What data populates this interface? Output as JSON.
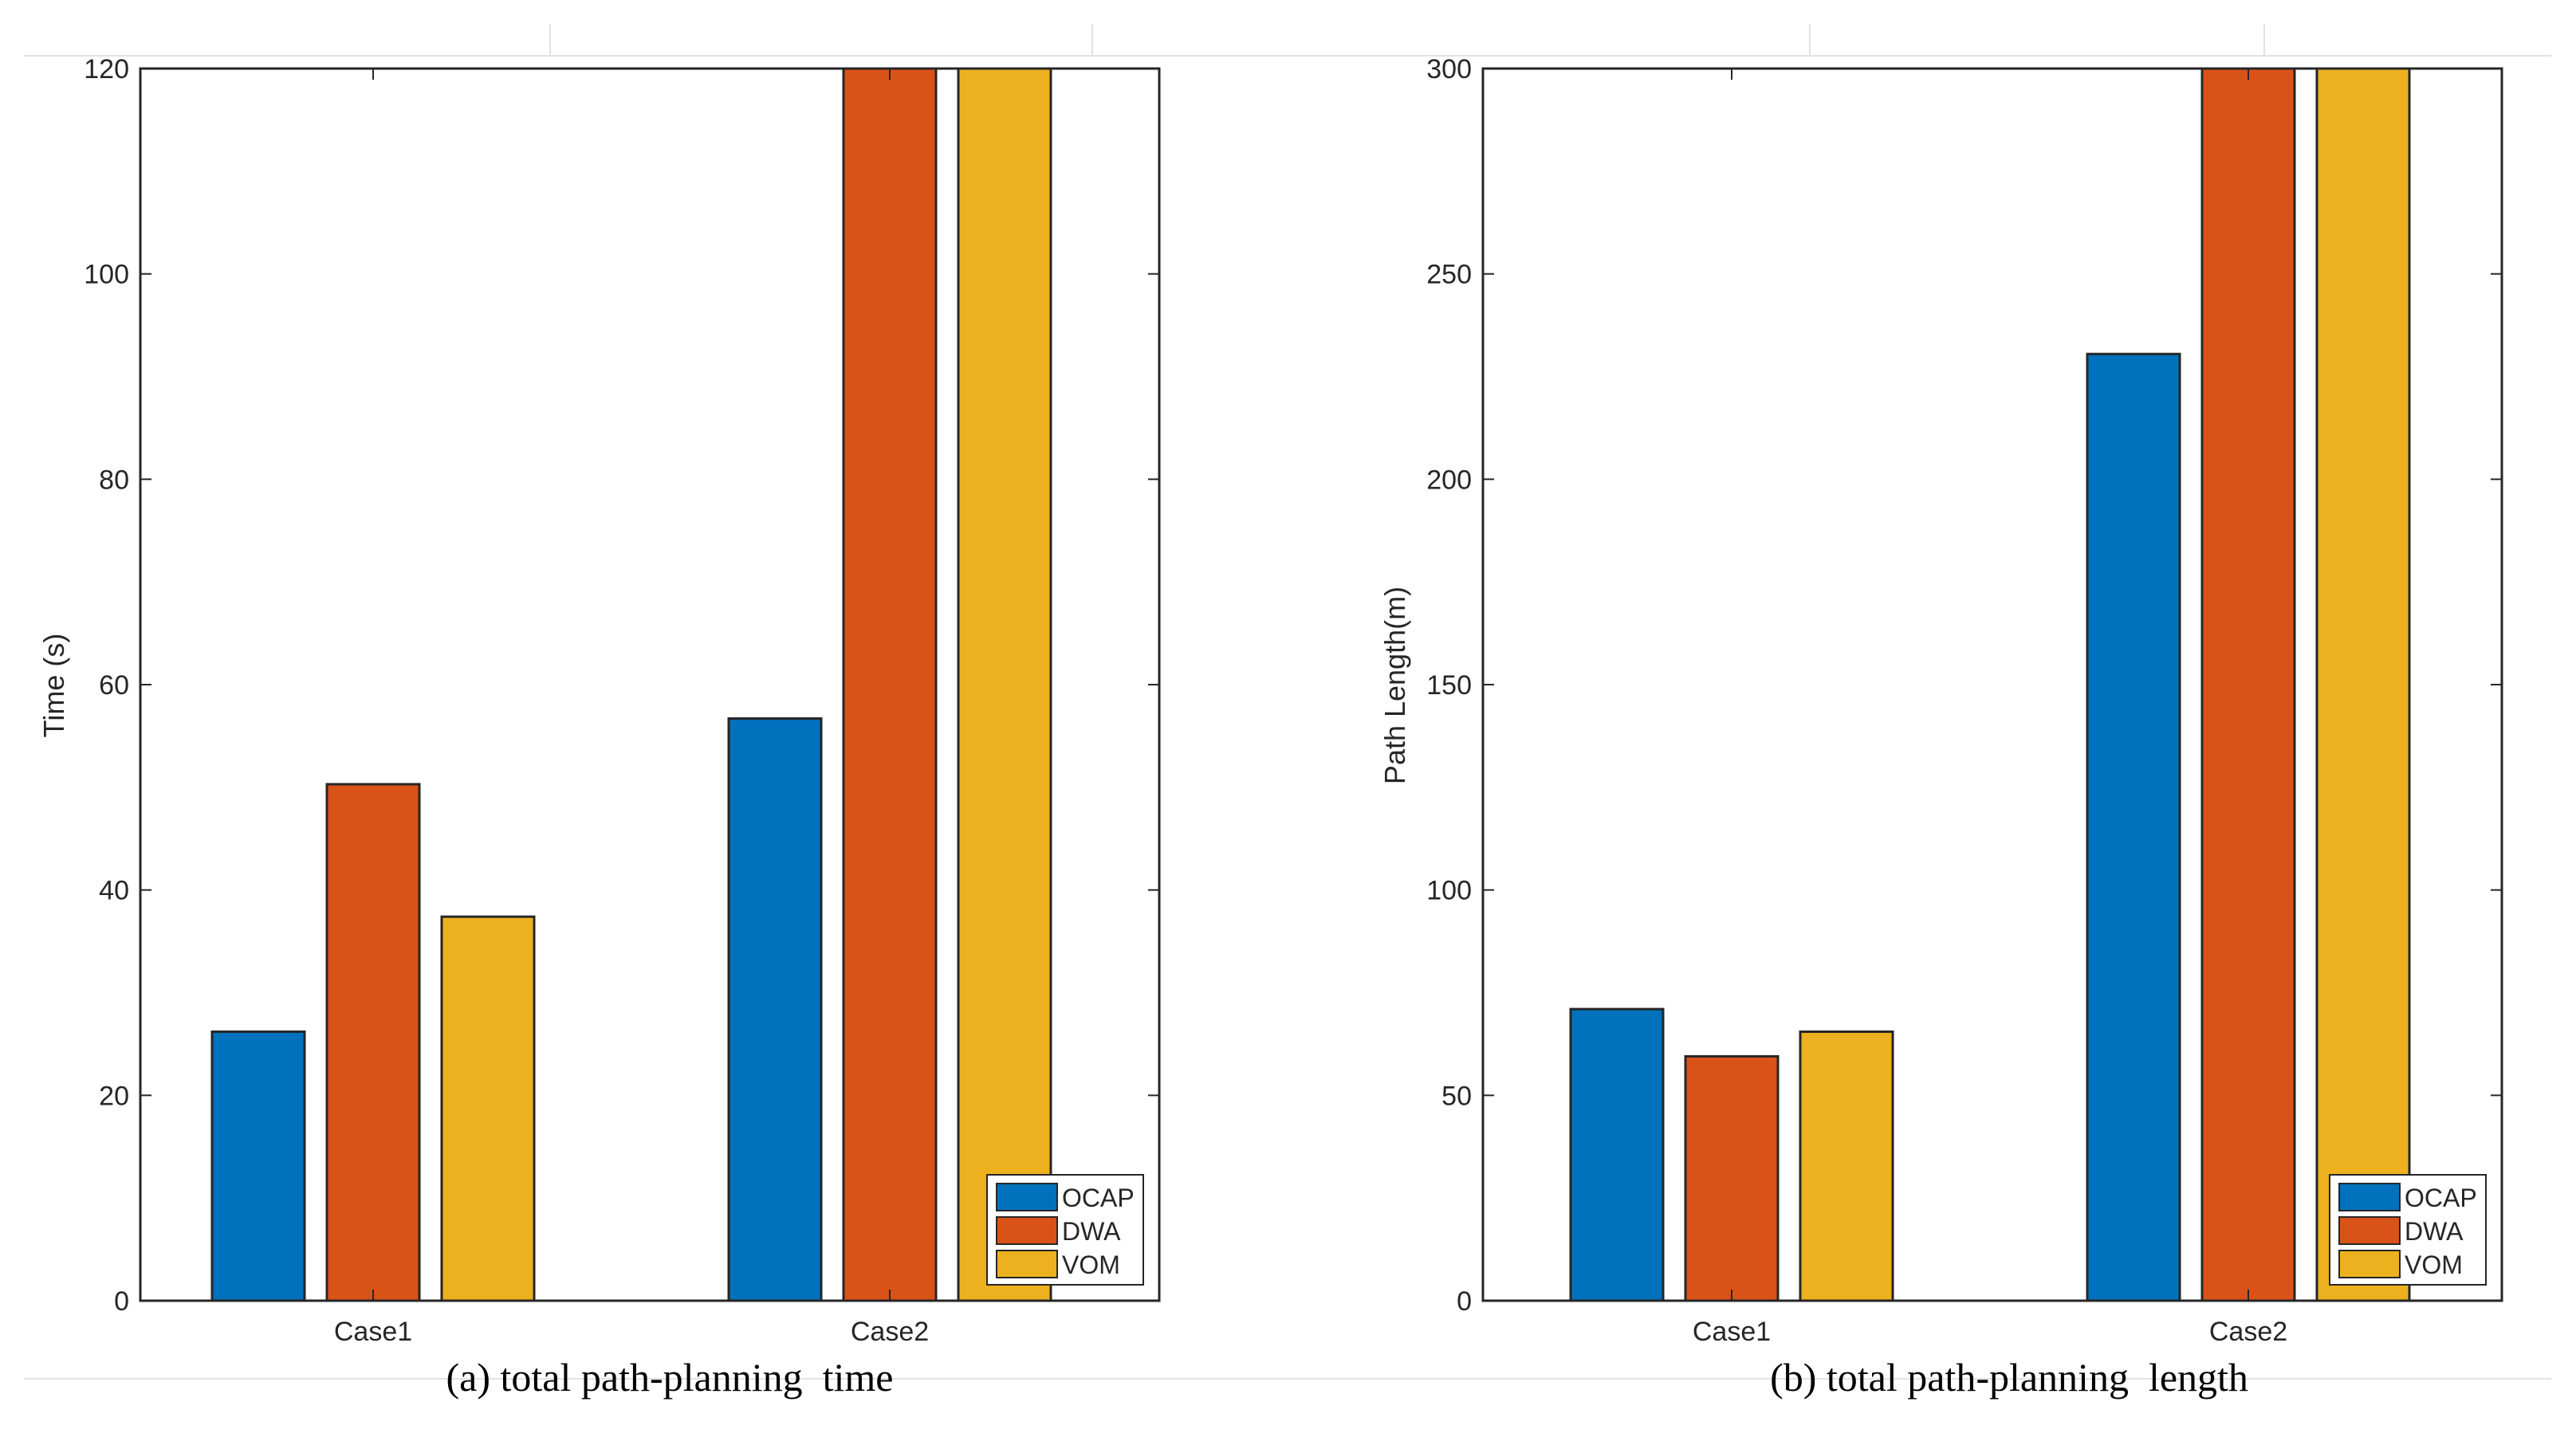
{
  "chart_data": [
    {
      "type": "bar",
      "caption": "(a) total path-planning  time",
      "categories": [
        "Case1",
        "Case2"
      ],
      "series": [
        {
          "name": "OCAP",
          "color": "#0072BD",
          "values": [
            26.2,
            56.7
          ]
        },
        {
          "name": "DWA",
          "color": "#D95319",
          "values": [
            50.3,
            120
          ]
        },
        {
          "name": "VOM",
          "color": "#EDB120",
          "values": [
            37.4,
            120
          ]
        }
      ],
      "xlabel": "",
      "ylabel": "Time (s)",
      "ylim": [
        0,
        120
      ],
      "yticks": [
        "0",
        "20",
        "40",
        "60",
        "80",
        "100",
        "120"
      ],
      "legend_position": "bottom-right",
      "grid": false
    },
    {
      "type": "bar",
      "caption": "(b) total path-planning  length",
      "categories": [
        "Case1",
        "Case2"
      ],
      "series": [
        {
          "name": "OCAP",
          "color": "#0072BD",
          "values": [
            71,
            230.5
          ]
        },
        {
          "name": "DWA",
          "color": "#D95319",
          "values": [
            59.5,
            300
          ]
        },
        {
          "name": "VOM",
          "color": "#EDB120",
          "values": [
            65.5,
            300
          ]
        }
      ],
      "xlabel": "",
      "ylabel": "Path Length(m)",
      "ylim": [
        0,
        300
      ],
      "yticks": [
        "0",
        "50",
        "100",
        "150",
        "200",
        "250",
        "300"
      ],
      "legend_position": "bottom-right",
      "grid": false
    }
  ]
}
